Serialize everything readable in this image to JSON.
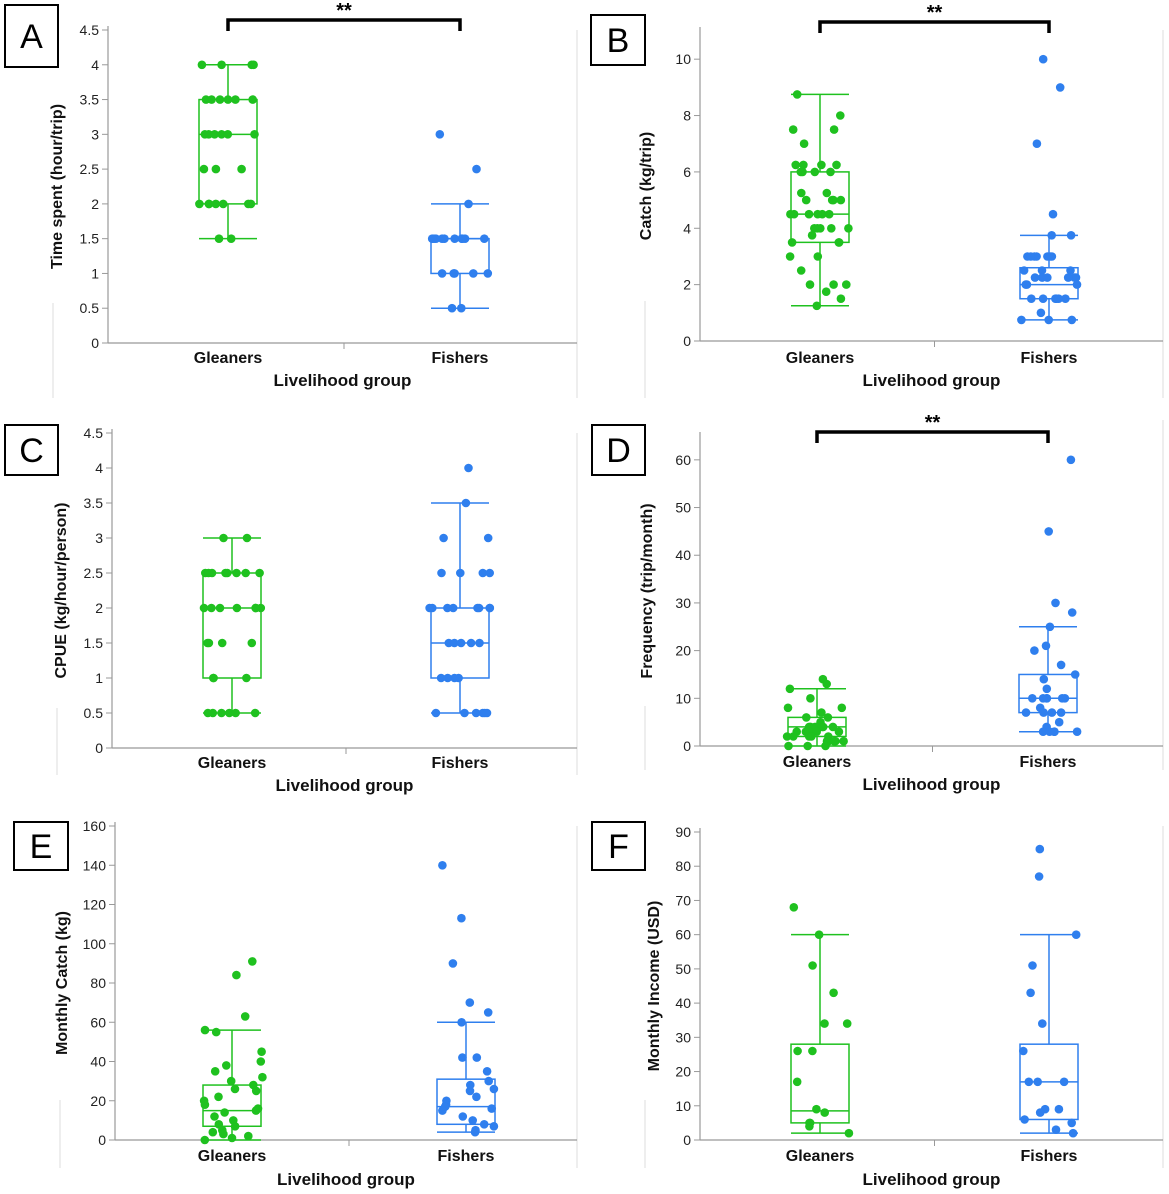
{
  "colors": {
    "Gleaners": "#1fc11f",
    "Fishers": "#2f7fee",
    "axis": "#999999",
    "bracket": "#000000"
  },
  "chart_data": [
    {
      "type": "box",
      "panel": "A",
      "ylabel": "Time spent (hour/trip)",
      "xlabel": "Livelihood group",
      "categories": [
        "Gleaners",
        "Fishers"
      ],
      "ylim": [
        0,
        4.5
      ],
      "yticks": [
        "0",
        "0.5",
        "1",
        "1.5",
        "2",
        "2.5",
        "3",
        "3.5",
        "4",
        "4.5"
      ],
      "significance": "**",
      "boxes": [
        {
          "group": "Gleaners",
          "whisker_low": 1.5,
          "q1": 2,
          "median": 3,
          "q3": 3.5,
          "whisker_high": 4,
          "points": [
            4,
            4,
            4,
            4,
            3.5,
            3.5,
            3.5,
            3.5,
            3.5,
            3.5,
            3,
            3,
            3,
            3,
            3,
            3,
            2.5,
            2.5,
            2.5,
            2,
            2,
            2,
            2,
            2,
            2,
            2,
            1.5,
            1.5
          ]
        },
        {
          "group": "Fishers",
          "whisker_low": 0.5,
          "q1": 1,
          "median": 1.5,
          "q3": 1.5,
          "whisker_high": 2,
          "points": [
            3,
            2.5,
            2,
            1.5,
            1.5,
            1.5,
            1.5,
            1.5,
            1.5,
            1.5,
            1.5,
            1.5,
            1.5,
            1,
            1,
            1,
            1,
            1,
            0.5,
            0.5
          ]
        }
      ]
    },
    {
      "type": "box",
      "panel": "B",
      "ylabel": "Catch (kg/trip)",
      "xlabel": "Livelihood group",
      "categories": [
        "Gleaners",
        "Fishers"
      ],
      "ylim": [
        0,
        11
      ],
      "yticks": [
        "0",
        "2",
        "4",
        "6",
        "8",
        "10"
      ],
      "significance": "**",
      "boxes": [
        {
          "group": "Gleaners",
          "whisker_low": 1.25,
          "q1": 3.5,
          "median": 4.5,
          "q3": 6,
          "whisker_high": 8.75,
          "points": [
            8.75,
            8,
            7.5,
            7.5,
            7,
            6.25,
            6.25,
            6.25,
            6.25,
            6,
            6,
            6,
            6,
            5.25,
            5.25,
            5,
            5,
            5,
            5,
            4.5,
            4.5,
            4.5,
            4.5,
            4.5,
            4.5,
            4,
            4,
            4,
            4,
            4,
            3.75,
            3.5,
            3.5,
            3.5,
            3,
            3,
            2.5,
            2,
            2,
            2,
            1.75,
            1.5,
            1.25
          ]
        },
        {
          "group": "Fishers",
          "whisker_low": 0.75,
          "q1": 1.5,
          "median": 2,
          "q3": 2.6,
          "whisker_high": 3.75,
          "points": [
            10,
            9,
            7,
            4.5,
            3.75,
            3.75,
            3,
            3,
            3,
            3,
            3,
            3,
            3,
            2.5,
            2.5,
            2.5,
            2.25,
            2.25,
            2.25,
            2.25,
            2.25,
            2.25,
            2,
            2,
            2,
            1.5,
            1.5,
            1.5,
            1.5,
            1.5,
            1.5,
            1,
            0.75,
            0.75,
            0.75
          ]
        }
      ]
    },
    {
      "type": "box",
      "panel": "C",
      "ylabel": "CPUE (kg/hour/person)",
      "xlabel": "Livelihood group",
      "categories": [
        "Gleaners",
        "Fishers"
      ],
      "ylim": [
        0,
        4.5
      ],
      "yticks": [
        "0",
        "0.5",
        "1",
        "1.5",
        "2",
        "2.5",
        "3",
        "3.5",
        "4",
        "4.5"
      ],
      "significance": "",
      "boxes": [
        {
          "group": "Gleaners",
          "whisker_low": 0.5,
          "q1": 1,
          "median": 2,
          "q3": 2.5,
          "whisker_high": 3,
          "points": [
            3,
            3,
            2.5,
            2.5,
            2.5,
            2.5,
            2.5,
            2.5,
            2.5,
            2.5,
            2,
            2,
            2,
            2,
            2,
            2,
            2,
            1.5,
            1.5,
            1.5,
            1.5,
            1,
            1,
            1,
            0.5,
            0.5,
            0.5,
            0.5,
            0.5,
            0.5
          ]
        },
        {
          "group": "Fishers",
          "whisker_low": 0.5,
          "q1": 1,
          "median": 1.5,
          "q3": 2,
          "whisker_high": 3.5,
          "points": [
            4,
            3.5,
            3,
            3,
            2.5,
            2.5,
            2.5,
            2.5,
            2,
            2,
            2,
            2,
            2,
            2,
            2,
            2,
            1.5,
            1.5,
            1.5,
            1.5,
            1.5,
            1,
            1,
            1,
            1,
            0.5,
            0.5,
            0.5,
            0.5,
            0.5,
            0.5
          ]
        }
      ]
    },
    {
      "type": "box",
      "panel": "D",
      "ylabel": "Frequency (trip/month)",
      "xlabel": "Livelihood group",
      "categories": [
        "Gleaners",
        "Fishers"
      ],
      "ylim": [
        0,
        65
      ],
      "yticks": [
        "0",
        "10",
        "20",
        "30",
        "40",
        "50",
        "60"
      ],
      "significance": "**",
      "boxes": [
        {
          "group": "Gleaners",
          "whisker_low": 0,
          "q1": 2,
          "median": 4,
          "q3": 6,
          "whisker_high": 12,
          "points": [
            14,
            13,
            12,
            10,
            8,
            8,
            7,
            6,
            6,
            5,
            4,
            4,
            4,
            4,
            4,
            4,
            3,
            3,
            3,
            3,
            3,
            3,
            2,
            2,
            2,
            2,
            2,
            1,
            1,
            1,
            1,
            1,
            0,
            0,
            0
          ]
        },
        {
          "group": "Fishers",
          "whisker_low": 3,
          "q1": 7,
          "median": 10,
          "q3": 15,
          "whisker_high": 25,
          "points": [
            60,
            45,
            30,
            28,
            25,
            21,
            20,
            17,
            15,
            14,
            12,
            10,
            10,
            10,
            10,
            10,
            10,
            8,
            7,
            7,
            7,
            7,
            5,
            4,
            3,
            3,
            3,
            3,
            3
          ]
        }
      ]
    },
    {
      "type": "box",
      "panel": "E",
      "ylabel": "Monthly Catch (kg)",
      "xlabel": "Livelihood group",
      "categories": [
        "Gleaners",
        "Fishers"
      ],
      "ylim": [
        0,
        160
      ],
      "yticks": [
        "0",
        "20",
        "40",
        "60",
        "80",
        "100",
        "120",
        "140",
        "160"
      ],
      "significance": "",
      "boxes": [
        {
          "group": "Gleaners",
          "whisker_low": 0,
          "q1": 7,
          "median": 15,
          "q3": 28,
          "whisker_high": 56,
          "points": [
            91,
            84,
            63,
            56,
            55,
            45,
            40,
            38,
            35,
            32,
            30,
            28,
            26,
            25,
            22,
            20,
            18,
            16,
            15,
            14,
            12,
            10,
            8,
            7,
            5,
            4,
            3,
            2,
            1,
            0
          ]
        },
        {
          "group": "Fishers",
          "whisker_low": 4,
          "q1": 8,
          "median": 17,
          "q3": 31,
          "whisker_high": 60,
          "points": [
            140,
            113,
            90,
            70,
            65,
            60,
            42,
            42,
            35,
            30,
            28,
            26,
            25,
            22,
            20,
            18,
            17,
            16,
            15,
            12,
            10,
            8,
            7,
            5,
            4
          ]
        }
      ]
    },
    {
      "type": "box",
      "panel": "F",
      "ylabel": "Monthly Income (USD)",
      "xlabel": "Livelihood group",
      "categories": [
        "Gleaners",
        "Fishers"
      ],
      "ylim": [
        0,
        90
      ],
      "yticks": [
        "0",
        "10",
        "20",
        "30",
        "40",
        "50",
        "60",
        "70",
        "80",
        "90"
      ],
      "significance": "",
      "boxes": [
        {
          "group": "Gleaners",
          "whisker_low": 2,
          "q1": 5,
          "median": 8.5,
          "q3": 28,
          "whisker_high": 60,
          "points": [
            68,
            60,
            51,
            43,
            34,
            34,
            26,
            26,
            17,
            9,
            8,
            5,
            5,
            4,
            2
          ]
        },
        {
          "group": "Fishers",
          "whisker_low": 2,
          "q1": 6,
          "median": 17,
          "q3": 28,
          "whisker_high": 60,
          "points": [
            85,
            77,
            60,
            51,
            43,
            34,
            26,
            17,
            17,
            17,
            9,
            9,
            8,
            6,
            5,
            3,
            2
          ]
        }
      ]
    }
  ]
}
